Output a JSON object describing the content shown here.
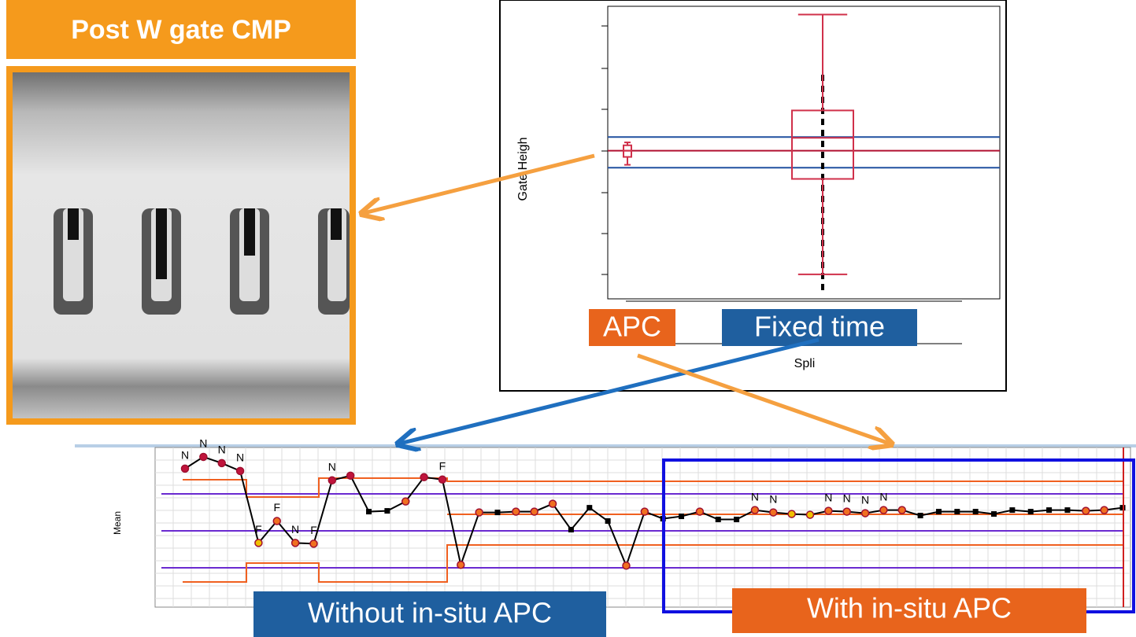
{
  "image_panel": {
    "title": "Post W gate CMP"
  },
  "box_plot": {
    "y_label": "Gate Heigh",
    "x_label": "Spli",
    "ylim": [
      0.4,
      7.45
    ],
    "groups": [
      {
        "label": "APC",
        "color": "#d0304a",
        "whisker_low": 3.63,
        "q1": 3.82,
        "median": 3.97,
        "q3": 4.1,
        "whisker_high": 4.17
      },
      {
        "label": "Fixed time",
        "color": "#d0304a",
        "whisker_low": 0.99,
        "q1": 3.29,
        "median": 4.28,
        "q3": 4.94,
        "whisker_high": 7.25
      }
    ],
    "reference_lines": [
      {
        "value": 4.3,
        "color": "#2050a0"
      },
      {
        "value": 3.97,
        "color": "#b01030"
      },
      {
        "value": 3.56,
        "color": "#2050a0"
      }
    ]
  },
  "control_chart": {
    "y_label": "Mean",
    "ylim": [
      0,
      20.2
    ],
    "values": [
      17.5,
      19.0,
      18.2,
      17.2,
      8.0,
      10.8,
      8.0,
      7.9,
      16.0,
      16.6,
      12.0,
      12.1,
      13.3,
      16.4,
      16.1,
      5.2,
      11.9,
      11.9,
      12.0,
      12.0,
      13.0,
      9.7,
      12.5,
      10.8,
      5.1,
      12.0,
      11.1,
      11.4,
      12.0,
      11.0,
      11.0,
      12.2,
      11.9,
      11.7,
      11.6,
      12.1,
      12.0,
      11.8,
      12.2,
      12.2,
      11.5,
      12.0,
      12.0,
      12.0,
      11.7,
      12.2,
      12.0,
      12.2,
      12.2,
      12.1,
      12.2,
      12.5
    ],
    "point_colors": [
      "#c0143c",
      "#c0143c",
      "#c0143c",
      "#c0143c",
      "#f0c000",
      "#f07020",
      "#f07020",
      "#f07020",
      "#c0143c",
      "#c0143c",
      "#000000",
      "#000000",
      "#f07020",
      "#c0143c",
      "#c0143c",
      "#f07020",
      "#f07020",
      "#000000",
      "#f07020",
      "#f07020",
      "#f07020",
      "#000000",
      "#000000",
      "#000000",
      "#f07020",
      "#f07020",
      "#000000",
      "#000000",
      "#f07020",
      "#000000",
      "#000000",
      "#f07020",
      "#f07020",
      "#f0c000",
      "#f0c000",
      "#f07020",
      "#f07020",
      "#f07020",
      "#f07020",
      "#f07020",
      "#000000",
      "#000000",
      "#000000",
      "#000000",
      "#000000",
      "#000000",
      "#000000",
      "#000000",
      "#000000",
      "#f07020",
      "#f07020",
      "#000000"
    ],
    "flags": [
      "N",
      "N",
      "N",
      "N",
      "F",
      "F",
      "N",
      "F",
      "N",
      null,
      null,
      null,
      null,
      null,
      "F",
      null,
      null,
      null,
      null,
      null,
      null,
      null,
      null,
      null,
      null,
      null,
      null,
      null,
      null,
      null,
      null,
      "N",
      "N",
      null,
      null,
      "N",
      "N",
      "N",
      "N",
      null,
      null,
      null,
      null,
      null,
      null,
      null,
      null,
      null,
      null,
      null,
      null,
      null
    ],
    "regions": [
      "Without in-situ APC",
      "With in-situ APC"
    ]
  }
}
